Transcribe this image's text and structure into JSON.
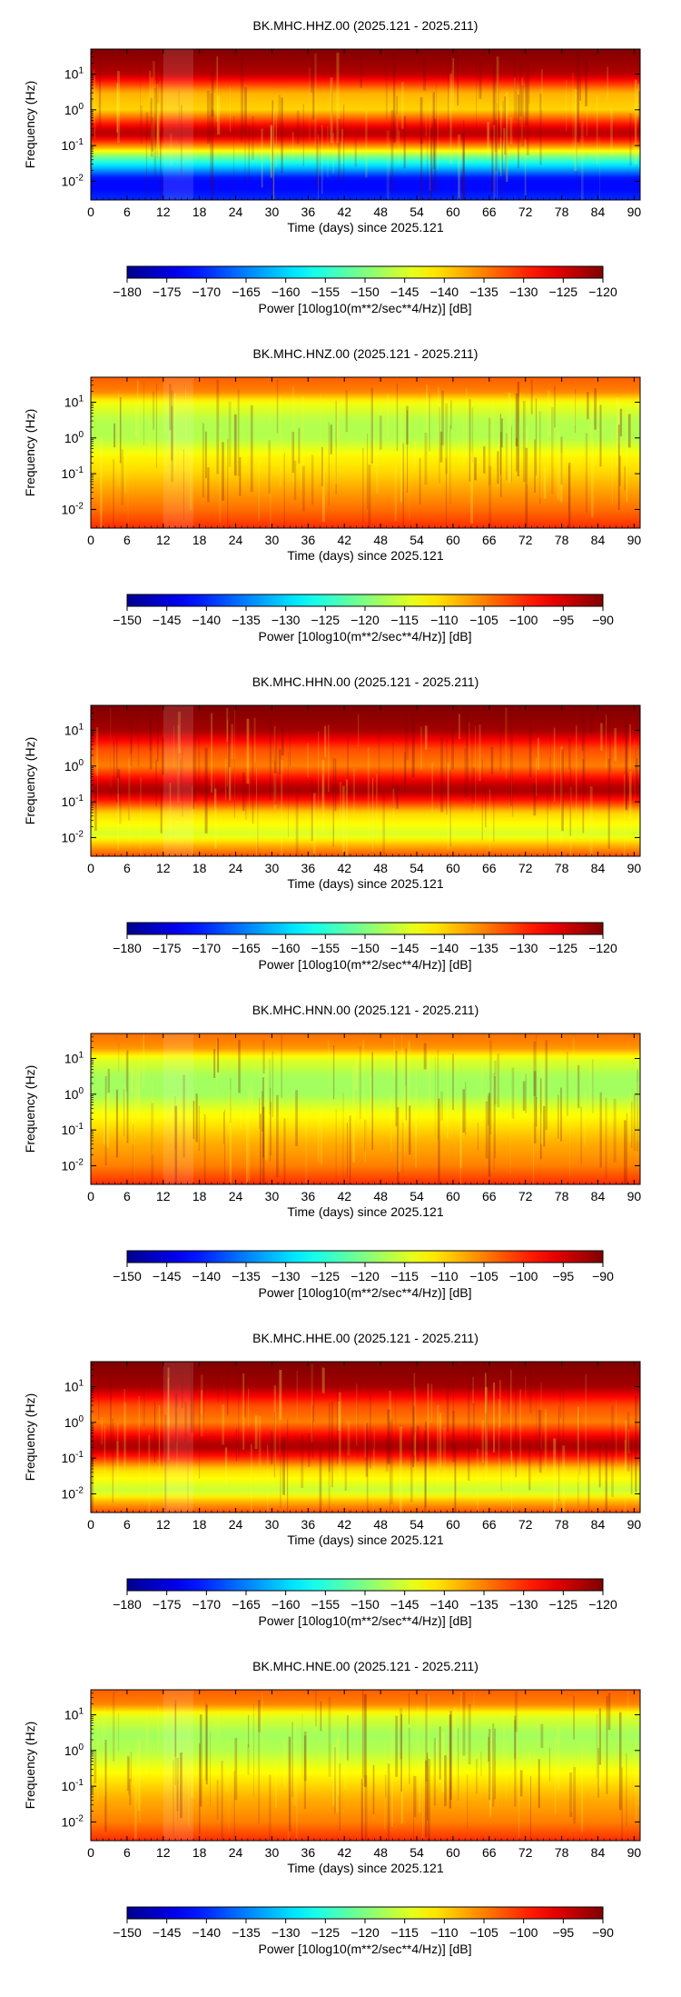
{
  "chart_data": [
    {
      "type": "heatmap",
      "title": "BK.MHC.HHZ.00 (2025.121 - 2025.211)",
      "xlabel": "Time (days) since 2025.121",
      "ylabel": "Frequency (Hz)",
      "x_ticks": [
        "0",
        "6",
        "12",
        "18",
        "24",
        "30",
        "36",
        "42",
        "48",
        "54",
        "60",
        "66",
        "72",
        "78",
        "84",
        "90"
      ],
      "x_range": [
        0,
        91
      ],
      "y_scale": "log",
      "y_range": [
        0.003,
        50
      ],
      "y_ticks": [
        {
          "value": 0.01,
          "mantissa": "10",
          "exp": "-2"
        },
        {
          "value": 0.1,
          "mantissa": "10",
          "exp": "-1"
        },
        {
          "value": 1,
          "mantissa": "10",
          "exp": "0"
        },
        {
          "value": 10,
          "mantissa": "10",
          "exp": "1"
        }
      ],
      "colorbar": {
        "label": "Power [10log10(m**2/sec**4/Hz)] [dB]",
        "min": -180,
        "max": -120,
        "ticks": [
          "−180",
          "−175",
          "−170",
          "−165",
          "−160",
          "−155",
          "−150",
          "−145",
          "−140",
          "−135",
          "−130",
          "−125",
          "−120"
        ],
        "colormap": "jet"
      },
      "profile": {
        "freq_hz": [
          0.003,
          0.006,
          0.012,
          0.05,
          0.1,
          0.2,
          0.3,
          1,
          3,
          10,
          50
        ],
        "power_db": [
          -170,
          -172,
          -172,
          -150,
          -135,
          -123,
          -125,
          -140,
          -138,
          -123,
          -120
        ]
      },
      "gap_days": [
        12,
        17
      ]
    },
    {
      "type": "heatmap",
      "title": "BK.MHC.HNZ.00 (2025.121 - 2025.211)",
      "xlabel": "Time (days) since 2025.121",
      "ylabel": "Frequency (Hz)",
      "x_ticks": [
        "0",
        "6",
        "12",
        "18",
        "24",
        "30",
        "36",
        "42",
        "48",
        "54",
        "60",
        "66",
        "72",
        "78",
        "84",
        "90"
      ],
      "x_range": [
        0,
        91
      ],
      "y_scale": "log",
      "y_range": [
        0.003,
        50
      ],
      "y_ticks": [
        {
          "value": 0.01,
          "mantissa": "10",
          "exp": "-2"
        },
        {
          "value": 0.1,
          "mantissa": "10",
          "exp": "-1"
        },
        {
          "value": 1,
          "mantissa": "10",
          "exp": "0"
        },
        {
          "value": 10,
          "mantissa": "10",
          "exp": "1"
        }
      ],
      "colorbar": {
        "label": "Power [10log10(m**2/sec**4/Hz)] [dB]",
        "min": -150,
        "max": -90,
        "ticks": [
          "−150",
          "−145",
          "−140",
          "−135",
          "−130",
          "−125",
          "−120",
          "−115",
          "−110",
          "−105",
          "−100",
          "−95",
          "−90"
        ],
        "colormap": "jet"
      },
      "profile": {
        "freq_hz": [
          0.003,
          0.01,
          0.05,
          0.1,
          0.3,
          1,
          3,
          10,
          20,
          50
        ],
        "power_db": [
          -100,
          -104,
          -108,
          -110,
          -112,
          -117,
          -117,
          -113,
          -105,
          -103
        ]
      },
      "gap_days": [
        12,
        17
      ]
    },
    {
      "type": "heatmap",
      "title": "BK.MHC.HHN.00 (2025.121 - 2025.211)",
      "xlabel": "Time (days) since 2025.121",
      "ylabel": "Frequency (Hz)",
      "x_ticks": [
        "0",
        "6",
        "12",
        "18",
        "24",
        "30",
        "36",
        "42",
        "48",
        "54",
        "60",
        "66",
        "72",
        "78",
        "84",
        "90"
      ],
      "x_range": [
        0,
        91
      ],
      "y_scale": "log",
      "y_range": [
        0.003,
        50
      ],
      "y_ticks": [
        {
          "value": 0.01,
          "mantissa": "10",
          "exp": "-2"
        },
        {
          "value": 0.1,
          "mantissa": "10",
          "exp": "-1"
        },
        {
          "value": 1,
          "mantissa": "10",
          "exp": "0"
        },
        {
          "value": 10,
          "mantissa": "10",
          "exp": "1"
        }
      ],
      "colorbar": {
        "label": "Power [10log10(m**2/sec**4/Hz)] [dB]",
        "min": -180,
        "max": -120,
        "ticks": [
          "−180",
          "−175",
          "−170",
          "−165",
          "−160",
          "−155",
          "−150",
          "−145",
          "−140",
          "−135",
          "−130",
          "−125",
          "−120"
        ],
        "colormap": "jet"
      },
      "profile": {
        "freq_hz": [
          0.003,
          0.006,
          0.012,
          0.05,
          0.1,
          0.2,
          0.3,
          1,
          3,
          10,
          50
        ],
        "power_db": [
          -132,
          -138,
          -145,
          -140,
          -130,
          -122,
          -124,
          -135,
          -132,
          -122,
          -120
        ]
      },
      "gap_days": [
        12,
        17
      ]
    },
    {
      "type": "heatmap",
      "title": "BK.MHC.HNN.00 (2025.121 - 2025.211)",
      "xlabel": "Time (days) since 2025.121",
      "ylabel": "Frequency (Hz)",
      "x_ticks": [
        "0",
        "6",
        "12",
        "18",
        "24",
        "30",
        "36",
        "42",
        "48",
        "54",
        "60",
        "66",
        "72",
        "78",
        "84",
        "90"
      ],
      "x_range": [
        0,
        91
      ],
      "y_scale": "log",
      "y_range": [
        0.003,
        50
      ],
      "y_ticks": [
        {
          "value": 0.01,
          "mantissa": "10",
          "exp": "-2"
        },
        {
          "value": 0.1,
          "mantissa": "10",
          "exp": "-1"
        },
        {
          "value": 1,
          "mantissa": "10",
          "exp": "0"
        },
        {
          "value": 10,
          "mantissa": "10",
          "exp": "1"
        }
      ],
      "colorbar": {
        "label": "Power [10log10(m**2/sec**4/Hz)] [dB]",
        "min": -150,
        "max": -90,
        "ticks": [
          "−150",
          "−145",
          "−140",
          "−135",
          "−130",
          "−125",
          "−120",
          "−115",
          "−110",
          "−105",
          "−100",
          "−95",
          "−90"
        ],
        "colormap": "jet"
      },
      "profile": {
        "freq_hz": [
          0.003,
          0.01,
          0.05,
          0.1,
          0.3,
          1,
          3,
          10,
          20,
          50
        ],
        "power_db": [
          -100,
          -105,
          -108,
          -110,
          -113,
          -118,
          -118,
          -114,
          -106,
          -104
        ]
      },
      "gap_days": [
        12,
        17
      ]
    },
    {
      "type": "heatmap",
      "title": "BK.MHC.HHE.00 (2025.121 - 2025.211)",
      "xlabel": "Time (days) since 2025.121",
      "ylabel": "Frequency (Hz)",
      "x_ticks": [
        "0",
        "6",
        "12",
        "18",
        "24",
        "30",
        "36",
        "42",
        "48",
        "54",
        "60",
        "66",
        "72",
        "78",
        "84",
        "90"
      ],
      "x_range": [
        0,
        91
      ],
      "y_scale": "log",
      "y_range": [
        0.003,
        50
      ],
      "y_ticks": [
        {
          "value": 0.01,
          "mantissa": "10",
          "exp": "-2"
        },
        {
          "value": 0.1,
          "mantissa": "10",
          "exp": "-1"
        },
        {
          "value": 1,
          "mantissa": "10",
          "exp": "0"
        },
        {
          "value": 10,
          "mantissa": "10",
          "exp": "1"
        }
      ],
      "colorbar": {
        "label": "Power [10log10(m**2/sec**4/Hz)] [dB]",
        "min": -180,
        "max": -120,
        "ticks": [
          "−180",
          "−175",
          "−170",
          "−165",
          "−160",
          "−155",
          "−150",
          "−145",
          "−140",
          "−135",
          "−130",
          "−125",
          "−120"
        ],
        "colormap": "jet"
      },
      "profile": {
        "freq_hz": [
          0.003,
          0.006,
          0.012,
          0.05,
          0.1,
          0.2,
          0.3,
          1,
          3,
          10,
          50
        ],
        "power_db": [
          -132,
          -138,
          -146,
          -140,
          -130,
          -122,
          -124,
          -135,
          -132,
          -122,
          -120
        ]
      },
      "gap_days": [
        12,
        17
      ]
    },
    {
      "type": "heatmap",
      "title": "BK.MHC.HNE.00 (2025.121 - 2025.211)",
      "xlabel": "Time (days) since 2025.121",
      "ylabel": "Frequency (Hz)",
      "x_ticks": [
        "0",
        "6",
        "12",
        "18",
        "24",
        "30",
        "36",
        "42",
        "48",
        "54",
        "60",
        "66",
        "72",
        "78",
        "84",
        "90"
      ],
      "x_range": [
        0,
        91
      ],
      "y_scale": "log",
      "y_range": [
        0.003,
        50
      ],
      "y_ticks": [
        {
          "value": 0.01,
          "mantissa": "10",
          "exp": "-2"
        },
        {
          "value": 0.1,
          "mantissa": "10",
          "exp": "-1"
        },
        {
          "value": 1,
          "mantissa": "10",
          "exp": "0"
        },
        {
          "value": 10,
          "mantissa": "10",
          "exp": "1"
        }
      ],
      "colorbar": {
        "label": "Power [10log10(m**2/sec**4/Hz)] [dB]",
        "min": -150,
        "max": -90,
        "ticks": [
          "−150",
          "−145",
          "−140",
          "−135",
          "−130",
          "−125",
          "−120",
          "−115",
          "−110",
          "−105",
          "−100",
          "−95",
          "−90"
        ],
        "colormap": "jet"
      },
      "profile": {
        "freq_hz": [
          0.003,
          0.01,
          0.05,
          0.1,
          0.3,
          1,
          3,
          10,
          20,
          50
        ],
        "power_db": [
          -100,
          -105,
          -108,
          -110,
          -113,
          -117,
          -118,
          -114,
          -105,
          -103
        ]
      },
      "gap_days": [
        12,
        17
      ]
    }
  ]
}
